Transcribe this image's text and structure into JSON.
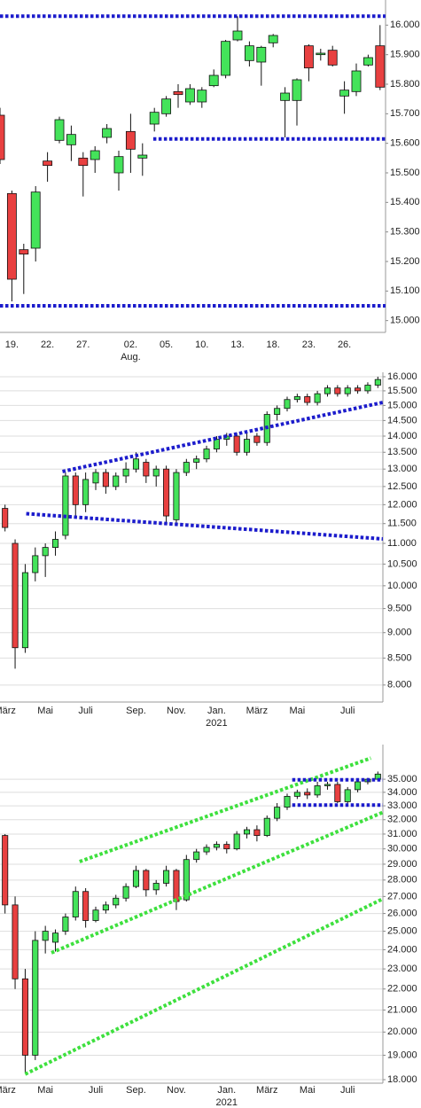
{
  "chart_data": [
    {
      "type": "candlestick",
      "categories": [
        null,
        "19.",
        null,
        null,
        "22.",
        null,
        null,
        "27.",
        null,
        null,
        null,
        "02.",
        null,
        null,
        "05.",
        null,
        null,
        "10.",
        null,
        null,
        "13.",
        null,
        null,
        "18.",
        null,
        null,
        "23.",
        null,
        null,
        "26.",
        null,
        null,
        null
      ],
      "x_sublabels": [
        null,
        null,
        null,
        null,
        null,
        null,
        null,
        null,
        null,
        null,
        null,
        "Aug.",
        null,
        null,
        null,
        null,
        null,
        null,
        null,
        null,
        null,
        null,
        null,
        null,
        null,
        null,
        null,
        null,
        null,
        null,
        null,
        null,
        null
      ],
      "open": [
        15695,
        15430,
        15240,
        15245,
        15540,
        15610,
        15595,
        15550,
        15545,
        15620,
        15500,
        15640,
        15550,
        15665,
        15700,
        15775,
        15740,
        15740,
        15795,
        15830,
        15950,
        15880,
        15875,
        15940,
        15745,
        15745,
        15930,
        15900,
        15915,
        15760,
        15775,
        15865,
        15930
      ],
      "high": [
        15720,
        15440,
        15260,
        15455,
        15570,
        15690,
        15660,
        15570,
        15590,
        15665,
        15575,
        15700,
        15600,
        15720,
        15760,
        15800,
        15800,
        15790,
        15850,
        15950,
        16030,
        15945,
        15930,
        15970,
        15790,
        15820,
        15935,
        15920,
        15930,
        15810,
        15870,
        15900,
        16000
      ],
      "low": [
        15530,
        15065,
        15090,
        15200,
        15470,
        15600,
        15540,
        15420,
        15500,
        15600,
        15440,
        15500,
        15490,
        15640,
        15690,
        15720,
        15730,
        15720,
        15790,
        15820,
        15945,
        15860,
        15795,
        15925,
        15620,
        15660,
        15810,
        15880,
        15860,
        15700,
        15760,
        15860,
        15780
      ],
      "close": [
        15545,
        15140,
        15225,
        15435,
        15525,
        15680,
        15630,
        15525,
        15575,
        15650,
        15555,
        15580,
        15560,
        15705,
        15750,
        15765,
        15785,
        15780,
        15830,
        15945,
        15980,
        15930,
        15925,
        15965,
        15770,
        15815,
        15855,
        15905,
        15865,
        15780,
        15845,
        15890,
        15790
      ],
      "up_color": "#44e35a",
      "down_color": "#e84040",
      "ylim": [
        14960,
        16085
      ],
      "log_scale": false,
      "grid": false,
      "yticks": [
        {
          "value": 15000,
          "label": "15.000"
        },
        {
          "value": 15100,
          "label": "15.100"
        },
        {
          "value": 15200,
          "label": "15.200"
        },
        {
          "value": 15300,
          "label": "15.300"
        },
        {
          "value": 15400,
          "label": "15.400"
        },
        {
          "value": 15500,
          "label": "15.500"
        },
        {
          "value": 15600,
          "label": "15.600"
        },
        {
          "value": 15700,
          "label": "15.700"
        },
        {
          "value": 15800,
          "label": "15.800"
        },
        {
          "value": 15900,
          "label": "15.900"
        },
        {
          "value": 16000,
          "label": "16.000"
        }
      ],
      "lines": [
        {
          "color": "#1c1ccc",
          "x": [
            0,
            32.7
          ],
          "y": [
            16030,
            16030
          ]
        },
        {
          "color": "#1c1ccc",
          "x": [
            12.9,
            32.7
          ],
          "y": [
            15615,
            15615
          ]
        },
        {
          "color": "#1c1ccc",
          "x": [
            0,
            32.7
          ],
          "y": [
            15050,
            15050
          ]
        }
      ]
    },
    {
      "type": "candlestick",
      "categories": [
        "März",
        null,
        null,
        null,
        "Mai",
        null,
        null,
        null,
        "Juli",
        null,
        null,
        null,
        null,
        "Sep.",
        null,
        null,
        null,
        "Nov.",
        null,
        null,
        null,
        "Jan.",
        null,
        null,
        null,
        "März",
        null,
        null,
        null,
        "Mai",
        null,
        null,
        null,
        null,
        "Juli",
        null,
        null,
        null
      ],
      "x_sublabels": [
        null,
        null,
        null,
        null,
        null,
        null,
        null,
        null,
        null,
        null,
        null,
        null,
        null,
        null,
        null,
        null,
        null,
        null,
        null,
        null,
        null,
        "2021",
        null,
        null,
        null,
        null,
        null,
        null,
        null,
        null,
        null,
        null,
        null,
        null,
        null,
        null,
        null,
        null
      ],
      "open": [
        11900,
        11000,
        8700,
        10300,
        10700,
        10900,
        11200,
        12800,
        12000,
        12600,
        12900,
        12500,
        12800,
        13000,
        13200,
        12800,
        13000,
        11600,
        12900,
        13200,
        13300,
        13600,
        13900,
        14000,
        13500,
        14000,
        13800,
        14700,
        14900,
        15200,
        15300,
        15100,
        15400,
        15600,
        15400,
        15600,
        15500,
        15700
      ],
      "high": [
        12000,
        11100,
        10500,
        10900,
        11000,
        11300,
        12900,
        12900,
        12900,
        13000,
        13000,
        12900,
        13200,
        13500,
        13300,
        13100,
        13100,
        13000,
        13300,
        13400,
        13700,
        14000,
        14100,
        14100,
        14100,
        14100,
        14800,
        15000,
        15300,
        15400,
        15400,
        15500,
        15700,
        15700,
        15700,
        15700,
        15800,
        16000
      ],
      "low": [
        11300,
        8300,
        8600,
        10100,
        10200,
        10700,
        11100,
        11700,
        11800,
        12400,
        12300,
        12400,
        12600,
        12900,
        12600,
        12500,
        11500,
        11500,
        12800,
        13000,
        13200,
        13500,
        13700,
        13400,
        13400,
        13700,
        13700,
        14500,
        14800,
        15100,
        15000,
        15000,
        15300,
        15300,
        15300,
        15400,
        15400,
        15600
      ],
      "close": [
        11400,
        8700,
        10300,
        10700,
        10900,
        11100,
        12800,
        12000,
        12700,
        12900,
        12500,
        12800,
        13000,
        13300,
        12800,
        13000,
        11700,
        12900,
        13200,
        13300,
        13600,
        13900,
        14000,
        13500,
        13900,
        13800,
        14700,
        14900,
        15200,
        15300,
        15100,
        15400,
        15600,
        15400,
        15600,
        15500,
        15700,
        15900
      ],
      "up_color": "#44e35a",
      "down_color": "#e84040",
      "ylim": [
        7700,
        16160
      ],
      "log_scale": true,
      "grid": true,
      "yticks": [
        {
          "value": 8000,
          "label": "8.000"
        },
        {
          "value": 8500,
          "label": "8.500"
        },
        {
          "value": 9000,
          "label": "9.000"
        },
        {
          "value": 9500,
          "label": "9.500"
        },
        {
          "value": 10000,
          "label": "10.000"
        },
        {
          "value": 10500,
          "label": "10.500"
        },
        {
          "value": 11000,
          "label": "11.000"
        },
        {
          "value": 11500,
          "label": "11.500"
        },
        {
          "value": 12000,
          "label": "12.000"
        },
        {
          "value": 12500,
          "label": "12.500"
        },
        {
          "value": 13000,
          "label": "13.000"
        },
        {
          "value": 13500,
          "label": "13.500"
        },
        {
          "value": 14000,
          "label": "14.000"
        },
        {
          "value": 14500,
          "label": "14.500"
        },
        {
          "value": 15000,
          "label": "15.000"
        },
        {
          "value": 15500,
          "label": "15.500"
        },
        {
          "value": 16000,
          "label": "16.000"
        }
      ],
      "lines": [
        {
          "color": "#1c1ccc",
          "x": [
            5.7,
            37.5
          ],
          "y": [
            12930,
            15100
          ]
        },
        {
          "color": "#1c1ccc",
          "x": [
            2.1,
            37.5
          ],
          "y": [
            11760,
            11110
          ]
        }
      ]
    },
    {
      "type": "candlestick",
      "categories": [
        "März",
        null,
        null,
        null,
        "Mai",
        null,
        null,
        null,
        null,
        "Juli",
        null,
        null,
        null,
        "Sep.",
        null,
        null,
        null,
        "Nov.",
        null,
        null,
        null,
        null,
        "Jan.",
        null,
        null,
        null,
        "März",
        null,
        null,
        null,
        "Mai",
        null,
        null,
        null,
        "Juli",
        null,
        null,
        null
      ],
      "x_sublabels": [
        null,
        null,
        null,
        null,
        null,
        null,
        null,
        null,
        null,
        null,
        null,
        null,
        null,
        null,
        null,
        null,
        null,
        null,
        null,
        null,
        null,
        null,
        "2021",
        null,
        null,
        null,
        null,
        null,
        null,
        null,
        null,
        null,
        null,
        null,
        null,
        null,
        null,
        null
      ],
      "open": [
        30900,
        26500,
        22500,
        19000,
        24500,
        24400,
        25000,
        25800,
        27300,
        25600,
        26200,
        26500,
        26900,
        27600,
        28600,
        27400,
        27800,
        28600,
        26800,
        29300,
        29800,
        30100,
        30300,
        30000,
        31000,
        31300,
        30900,
        32100,
        32900,
        33700,
        34000,
        33800,
        34500,
        34600,
        33300,
        34200,
        34800,
        35000
      ],
      "high": [
        31000,
        27000,
        23000,
        25000,
        25300,
        25100,
        26000,
        27600,
        27500,
        26400,
        26700,
        27100,
        27800,
        28900,
        28700,
        28000,
        28900,
        28700,
        29600,
        30000,
        30300,
        30500,
        30500,
        31200,
        31500,
        31600,
        32300,
        33200,
        33900,
        34200,
        34300,
        34800,
        34800,
        34800,
        34400,
        34900,
        35100,
        35600
      ],
      "low": [
        26000,
        22000,
        18300,
        18800,
        23800,
        23900,
        24800,
        25600,
        25200,
        25500,
        26000,
        26300,
        26700,
        27500,
        27000,
        27100,
        27600,
        26200,
        26700,
        29100,
        29600,
        29900,
        29700,
        29900,
        30700,
        30500,
        30800,
        31900,
        32700,
        33500,
        33500,
        33600,
        34200,
        33200,
        33100,
        34000,
        34600,
        34900
      ],
      "close": [
        26500,
        22500,
        19000,
        24500,
        25000,
        24900,
        25800,
        27300,
        25600,
        26200,
        26500,
        26900,
        27600,
        28600,
        27400,
        27800,
        28600,
        26700,
        29300,
        29800,
        30100,
        30300,
        30000,
        31000,
        31300,
        30900,
        32100,
        32900,
        33700,
        34000,
        33800,
        34500,
        34600,
        33300,
        34200,
        34800,
        35000,
        35400
      ],
      "up_color": "#44e35a",
      "down_color": "#e84040",
      "ylim": [
        17860,
        37790
      ],
      "log_scale": true,
      "grid": true,
      "yticks": [
        {
          "value": 18000,
          "label": "18.000"
        },
        {
          "value": 19000,
          "label": "19.000"
        },
        {
          "value": 20000,
          "label": "20.000"
        },
        {
          "value": 21000,
          "label": "21.000"
        },
        {
          "value": 22000,
          "label": "22.000"
        },
        {
          "value": 23000,
          "label": "23.000"
        },
        {
          "value": 24000,
          "label": "24.000"
        },
        {
          "value": 25000,
          "label": "25.000"
        },
        {
          "value": 26000,
          "label": "26.000"
        },
        {
          "value": 27000,
          "label": "27.000"
        },
        {
          "value": 28000,
          "label": "28.000"
        },
        {
          "value": 29000,
          "label": "29.000"
        },
        {
          "value": 30000,
          "label": "30.000"
        },
        {
          "value": 31000,
          "label": "31.000"
        },
        {
          "value": 32000,
          "label": "32.000"
        },
        {
          "value": 33000,
          "label": "33.000"
        },
        {
          "value": 34000,
          "label": "34.000"
        },
        {
          "value": 35000,
          "label": "35.000"
        }
      ],
      "lines": [
        {
          "color": "#3ee03e",
          "x": [
            7.4,
            36.3
          ],
          "y": [
            29170,
            36670
          ]
        },
        {
          "color": "#3ee03e",
          "x": [
            4.6,
            37.5
          ],
          "y": [
            23835,
            32530
          ]
        },
        {
          "color": "#3ee03e",
          "x": [
            2.0,
            37.5
          ],
          "y": [
            18220,
            26860
          ]
        },
        {
          "color": "#1c1ccc",
          "x": [
            28.5,
            37.5
          ],
          "y": [
            34950,
            34950
          ]
        },
        {
          "color": "#1c1ccc",
          "x": [
            28.5,
            37.5
          ],
          "y": [
            33050,
            33050
          ]
        }
      ]
    }
  ]
}
